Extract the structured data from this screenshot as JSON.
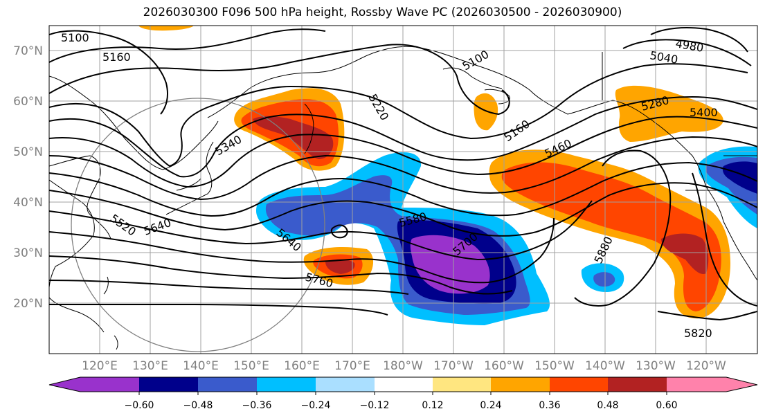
{
  "title": "2026030300 F096 500 hPa height, Rossby Wave PC (2026030500 - 2026030900)",
  "map": {
    "lat_ticks": [
      "20°N",
      "30°N",
      "40°N",
      "50°N",
      "60°N",
      "70°N"
    ],
    "lon_ticks": [
      "120°E",
      "130°E",
      "140°E",
      "150°E",
      "160°E",
      "170°E",
      "180°W",
      "170°W",
      "160°W",
      "150°W",
      "140°W",
      "130°W",
      "120°W"
    ],
    "contour_labels": [
      "5100",
      "5160",
      "5100",
      "5220",
      "5040",
      "4980",
      "5160",
      "5280",
      "5400",
      "5460",
      "5340",
      "5520",
      "5580",
      "5640",
      "5700",
      "5760",
      "5880",
      "5820",
      "5640"
    ]
  },
  "colorbar": {
    "ticks": [
      "−0.60",
      "−0.48",
      "−0.36",
      "−0.24",
      "−0.12",
      "0.12",
      "0.24",
      "0.36",
      "0.48",
      "0.60"
    ],
    "colors": [
      "#9932cc",
      "#00008b",
      "#3a5bcc",
      "#00bfff",
      "#aadfff",
      "#ffffff",
      "#ffe680",
      "#ffa500",
      "#ff4500",
      "#b22222",
      "#ff82ab"
    ]
  }
}
